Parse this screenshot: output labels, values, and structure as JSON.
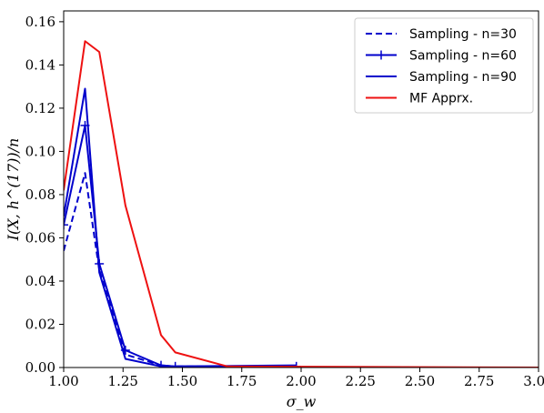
{
  "chart_data": {
    "type": "line",
    "xlabel": "σ_w",
    "ylabel": "I(X, h^(17))/n",
    "xlim": [
      1.0,
      3.0
    ],
    "ylim": [
      0.0,
      0.165
    ],
    "xticks": [
      "1.00",
      "1.25",
      "1.50",
      "1.75",
      "2.00",
      "2.25",
      "2.50",
      "2.75",
      "3.00"
    ],
    "xtick_values": [
      1.0,
      1.25,
      1.5,
      1.75,
      2.0,
      2.25,
      2.5,
      2.75,
      3.0
    ],
    "yticks": [
      "0.00",
      "0.02",
      "0.04",
      "0.06",
      "0.08",
      "0.10",
      "0.12",
      "0.14",
      "0.16"
    ],
    "ytick_values": [
      0.0,
      0.02,
      0.04,
      0.06,
      0.08,
      0.1,
      0.12,
      0.14,
      0.16
    ],
    "legend_position": "top-right",
    "grid": false,
    "series": [
      {
        "name": "Sampling - n=30",
        "color": "#0000cc",
        "style": "dashed",
        "marker": "none",
        "x": [
          1.0,
          1.09,
          1.15,
          1.26,
          1.41,
          1.47,
          1.98
        ],
        "y": [
          0.054,
          0.09,
          0.045,
          0.006,
          0.001,
          0.0005,
          0.0005
        ]
      },
      {
        "name": "Sampling - n=60",
        "color": "#0000cc",
        "style": "solid",
        "marker": "plus",
        "x": [
          1.0,
          1.09,
          1.15,
          1.26,
          1.41,
          1.47,
          1.98
        ],
        "y": [
          0.066,
          0.112,
          0.048,
          0.008,
          0.001,
          0.0005,
          0.0005
        ]
      },
      {
        "name": "Sampling - n=90",
        "color": "#0000cc",
        "style": "solid",
        "marker": "none",
        "x": [
          1.0,
          1.09,
          1.15,
          1.26,
          1.41,
          1.47,
          1.98
        ],
        "y": [
          0.07,
          0.129,
          0.044,
          0.004,
          0.0005,
          0.0005,
          0.001
        ]
      },
      {
        "name": "MF Apprx.",
        "color": "#ee1111",
        "style": "solid",
        "marker": "none",
        "x": [
          1.0,
          1.09,
          1.15,
          1.26,
          1.41,
          1.47,
          1.69,
          3.0
        ],
        "y": [
          0.082,
          0.151,
          0.146,
          0.075,
          0.015,
          0.007,
          0.0005,
          0.0
        ]
      }
    ]
  }
}
